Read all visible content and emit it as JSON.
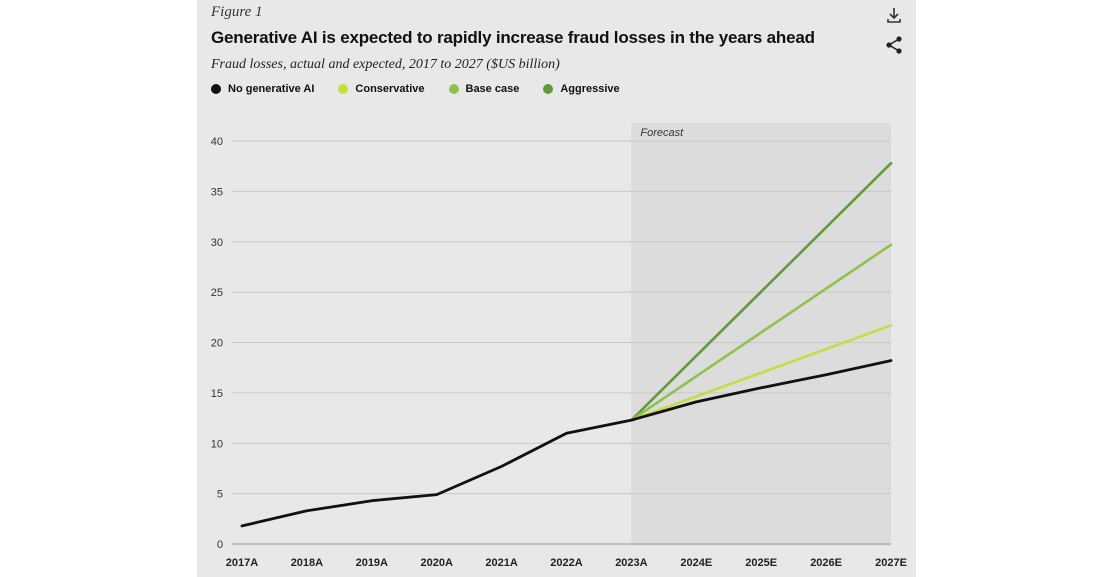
{
  "header": {
    "figure_label": "Figure 1",
    "title": "Generative AI is expected to rapidly increase fraud losses in the years ahead",
    "subtitle": "Fraud losses, actual and expected, 2017 to 2027 ($US billion)"
  },
  "toolbar": {
    "download_icon": "download-icon",
    "share_icon": "share-icon"
  },
  "chart_data": {
    "type": "line",
    "title": "Generative AI is expected to rapidly increase fraud losses in the years ahead",
    "subtitle": "Fraud losses, actual and expected, 2017 to 2027 ($US billion)",
    "xlabel": "",
    "ylabel": "",
    "categories": [
      "2017A",
      "2018A",
      "2019A",
      "2020A",
      "2021A",
      "2022A",
      "2023A",
      "2024E",
      "2025E",
      "2026E",
      "2027E"
    ],
    "ylim": [
      0,
      40
    ],
    "yticks": [
      0,
      5,
      10,
      15,
      20,
      25,
      30,
      35,
      40
    ],
    "grid": true,
    "legend_position": "top-left",
    "forecast_label": "Forecast",
    "forecast_start": "2023A",
    "series": [
      {
        "name": "No generative AI",
        "color": "#111111",
        "values": [
          1.8,
          3.3,
          4.3,
          4.9,
          7.7,
          11.0,
          12.3,
          14.1,
          15.5,
          16.8,
          18.2
        ]
      },
      {
        "name": "Conservative",
        "color": "#c6dd3f",
        "values": [
          null,
          null,
          null,
          null,
          null,
          null,
          12.3,
          null,
          null,
          null,
          21.7
        ]
      },
      {
        "name": "Base case",
        "color": "#8cc34e",
        "values": [
          null,
          null,
          null,
          null,
          null,
          null,
          12.3,
          null,
          null,
          null,
          29.7
        ]
      },
      {
        "name": "Aggressive",
        "color": "#5f9b3a",
        "values": [
          null,
          null,
          null,
          null,
          null,
          null,
          12.3,
          null,
          null,
          null,
          37.8
        ]
      }
    ]
  }
}
